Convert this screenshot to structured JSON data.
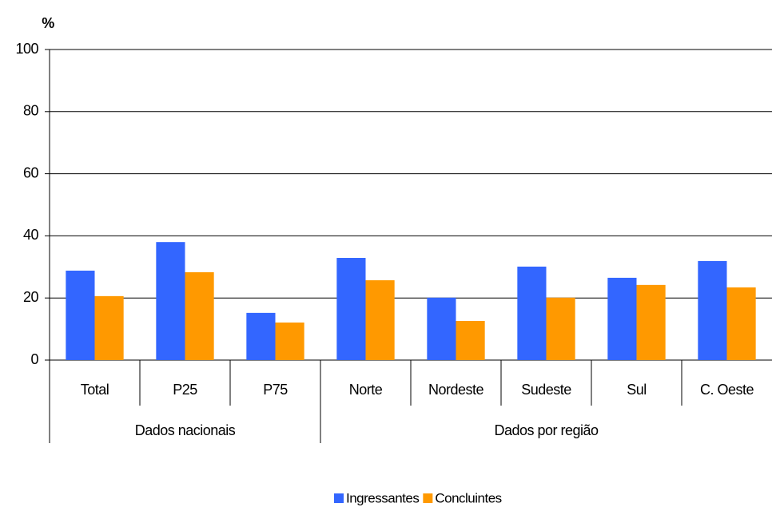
{
  "chart_data": {
    "type": "bar",
    "y_label": "%",
    "category_groups": [
      {
        "name": "Dados nacionais",
        "categories": [
          "Total",
          "P25",
          "P75"
        ]
      },
      {
        "name": "Dados por região",
        "categories": [
          "Norte",
          "Nordeste",
          "Sudeste",
          "Sul",
          "C. Oeste"
        ]
      }
    ],
    "series": [
      {
        "name": "Ingressantes",
        "color": "#3366ff",
        "values": [
          28.8,
          38.0,
          15.2,
          32.9,
          20.1,
          30.1,
          26.5,
          31.9
        ]
      },
      {
        "name": "Concluintes",
        "color": "#ff9900",
        "values": [
          20.6,
          28.3,
          12.1,
          25.7,
          12.6,
          20.1,
          24.2,
          23.4
        ]
      }
    ],
    "ylim": [
      0,
      100
    ],
    "yticks": [
      0,
      20,
      40,
      60,
      80,
      100
    ],
    "grid": true,
    "legend": "bottom"
  }
}
